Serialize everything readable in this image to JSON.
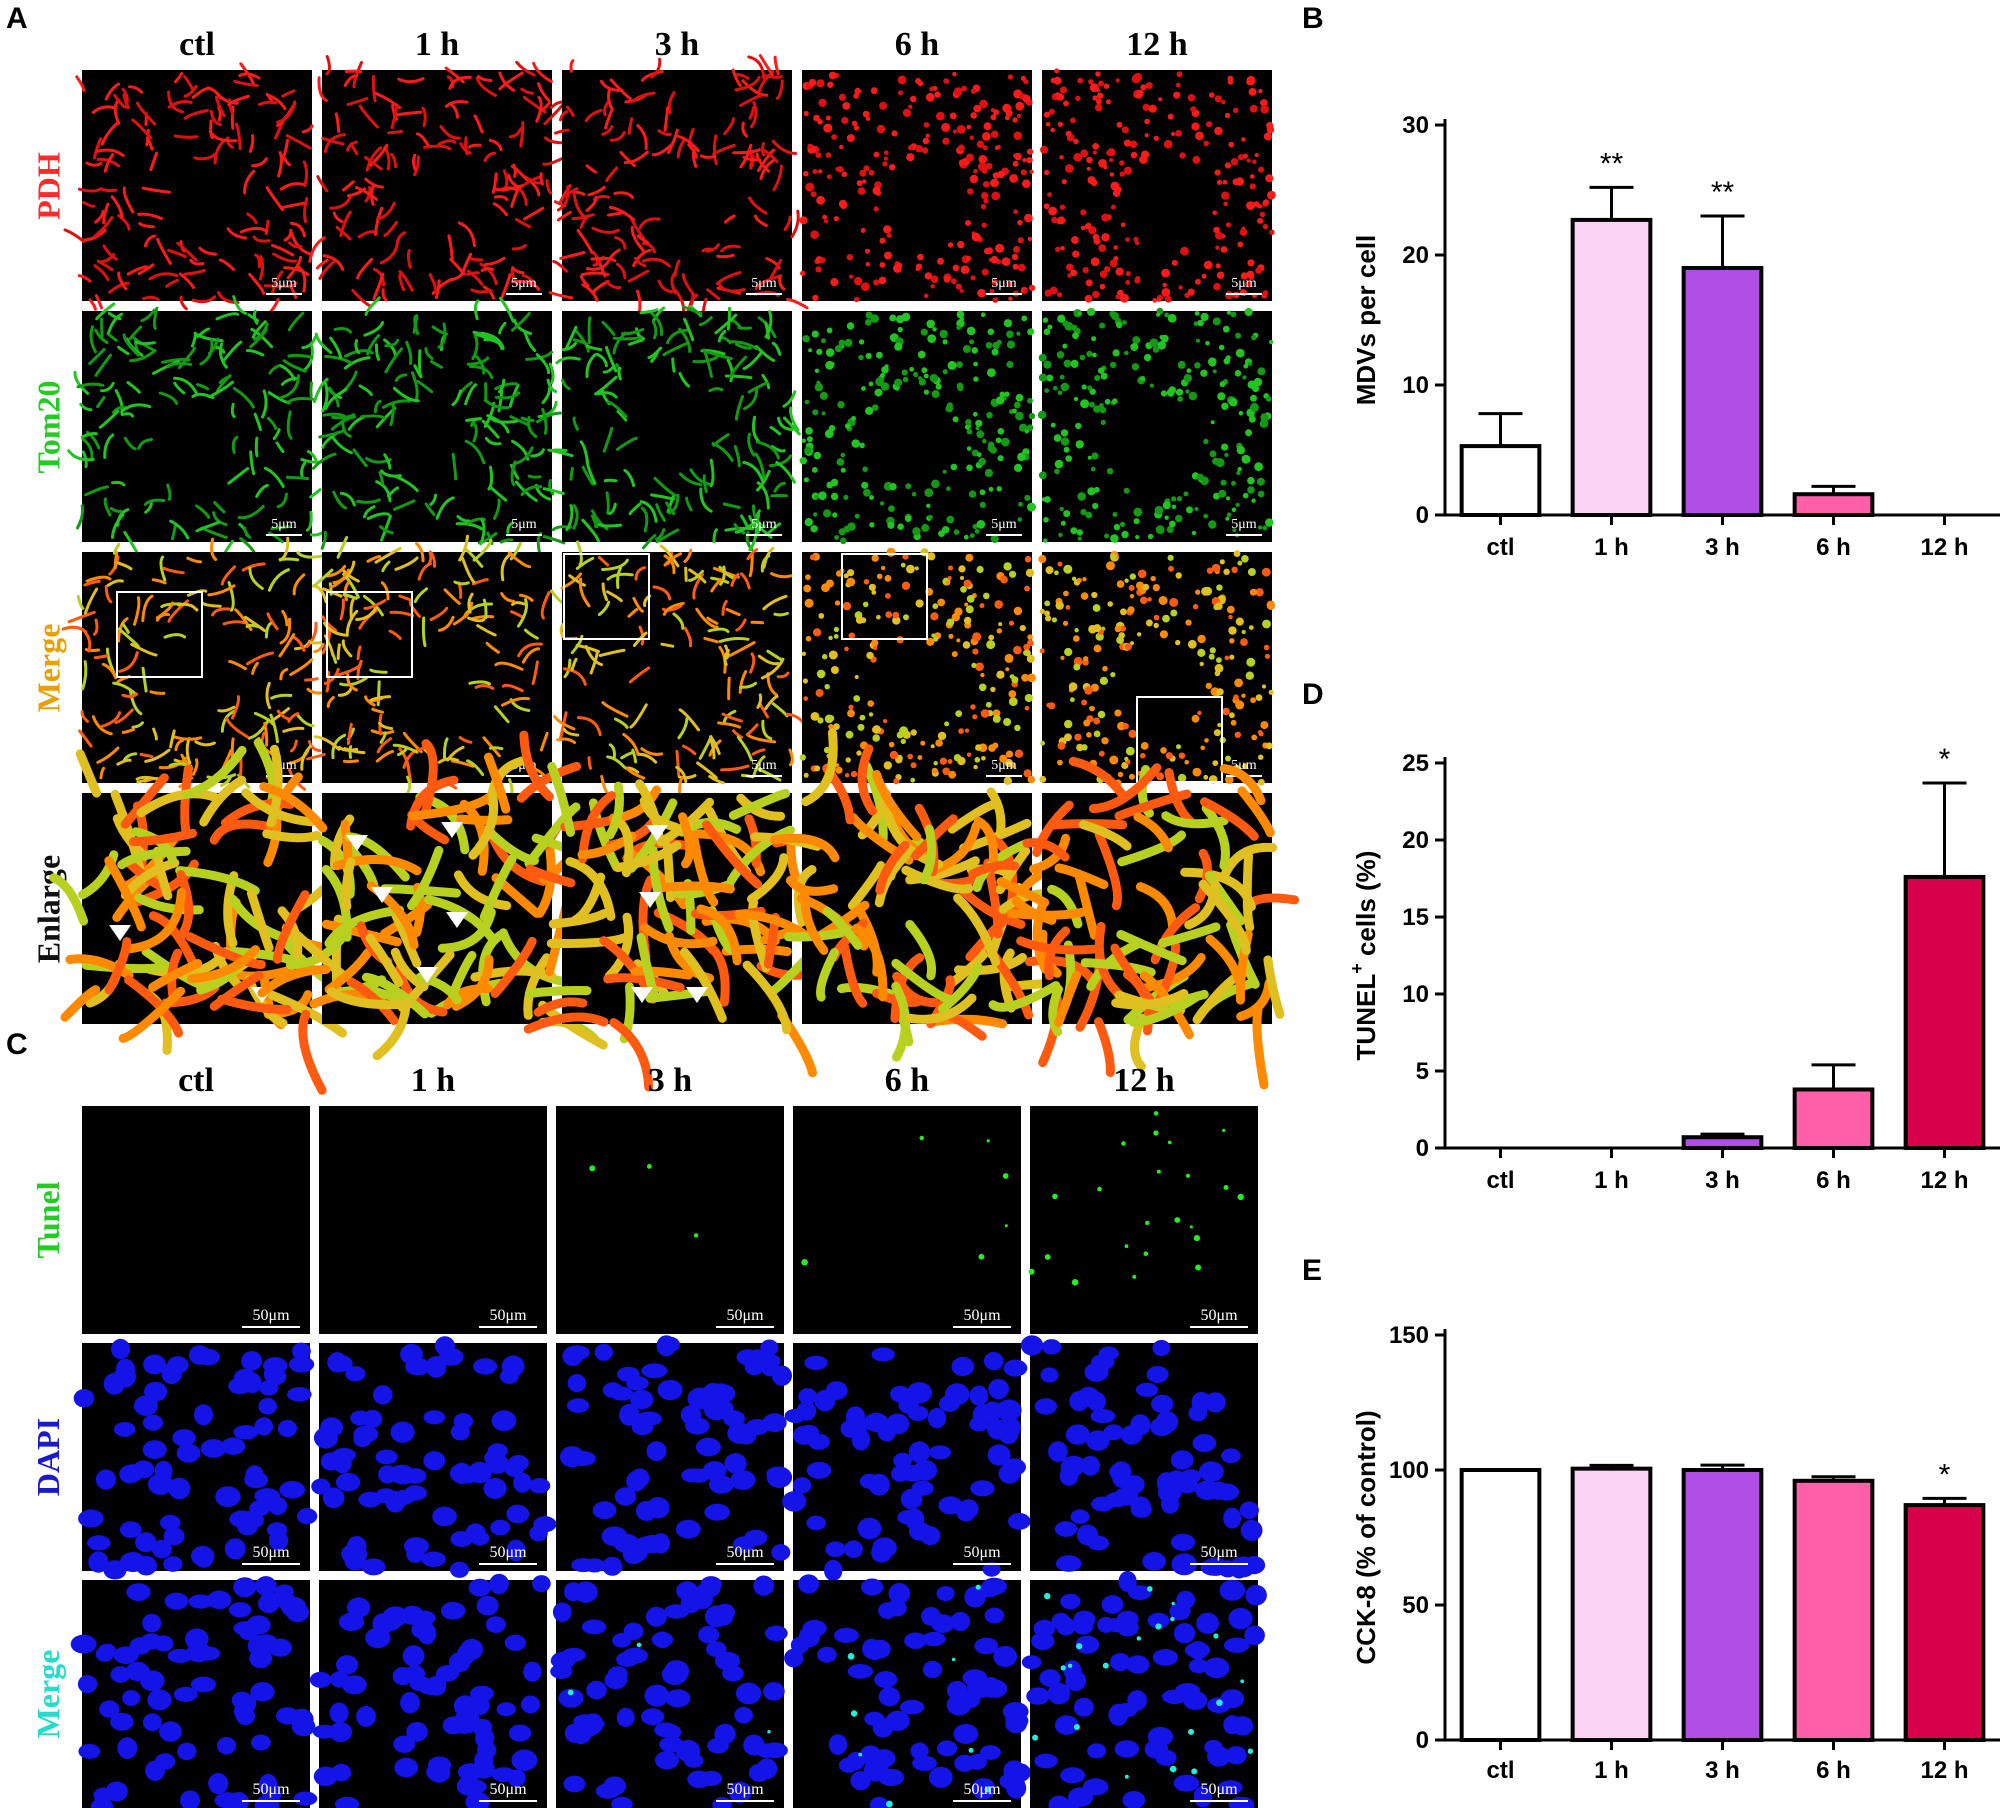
{
  "panel_letters": {
    "A": "A",
    "B": "B",
    "C": "C",
    "D": "D",
    "E": "E"
  },
  "panel_a": {
    "columns": [
      "ctl",
      "1 h",
      "3 h",
      "6 h",
      "12 h"
    ],
    "rows": [
      {
        "label": "PDH",
        "color": "#ff2a2a",
        "type": "pdh"
      },
      {
        "label": "Tom20",
        "color": "#22cc22",
        "type": "tom20"
      },
      {
        "label": "Merge",
        "color": "#e8a000",
        "type": "merge"
      },
      {
        "label": "Enlarge",
        "color": "#111111",
        "type": "enlarge"
      }
    ],
    "scale_label": "5μm"
  },
  "panel_c": {
    "columns": [
      "ctl",
      "1 h",
      "3 h",
      "6 h",
      "12 h"
    ],
    "rows": [
      {
        "label": "Tunel",
        "color": "#22cc22",
        "type": "tunel"
      },
      {
        "label": "DAPI",
        "color": "#1a1acc",
        "type": "dapi"
      },
      {
        "label": "Merge",
        "color": "#22ddcc",
        "type": "dapimerge"
      }
    ],
    "scale_label": "50μm"
  },
  "chart_data": [
    {
      "panel": "B",
      "type": "bar",
      "categories": [
        "ctl",
        "1 h",
        "3 h",
        "6 h",
        "12 h"
      ],
      "values": [
        5.3,
        22.7,
        19.0,
        1.6,
        0
      ],
      "errors": [
        2.5,
        2.5,
        4.0,
        0.6,
        0
      ],
      "significance": [
        "",
        "**",
        "**",
        "",
        ""
      ],
      "xlabel": "",
      "ylabel": "MDVs per cell",
      "ylim": [
        0,
        30
      ],
      "yticks": [
        0,
        10,
        20,
        30
      ],
      "colors": [
        "#ffffff",
        "#fbd3f5",
        "#b04ee6",
        "#ff5fa8",
        "#d8004a"
      ]
    },
    {
      "panel": "D",
      "type": "bar",
      "categories": [
        "ctl",
        "1 h",
        "3 h",
        "6 h",
        "12 h"
      ],
      "values": [
        0,
        0,
        0.7,
        3.8,
        17.6
      ],
      "errors": [
        0,
        0,
        0.2,
        1.6,
        6.1
      ],
      "significance": [
        "",
        "",
        "",
        "",
        "*"
      ],
      "xlabel": "",
      "ylabel": "TUNEL",
      "ylabel_sup": "+",
      "ylabel_rest": " cells (%)",
      "ylim": [
        0,
        25
      ],
      "yticks": [
        0,
        5,
        10,
        15,
        20,
        25
      ],
      "colors": [
        "#ffffff",
        "#fbd3f5",
        "#b04ee6",
        "#ff5fa8",
        "#d8004a"
      ]
    },
    {
      "panel": "E",
      "type": "bar",
      "categories": [
        "ctl",
        "1 h",
        "3 h",
        "6 h",
        "12 h"
      ],
      "values": [
        100,
        100.5,
        100,
        96,
        87
      ],
      "errors": [
        0,
        1.2,
        1.8,
        1.5,
        2.5
      ],
      "significance": [
        "",
        "",
        "",
        "",
        "*"
      ],
      "xlabel": "",
      "ylabel": "CCK-8 (% of control)",
      "ylim": [
        0,
        150
      ],
      "yticks": [
        0,
        50,
        100,
        150
      ],
      "colors": [
        "#ffffff",
        "#fbd3f5",
        "#b04ee6",
        "#ff5fa8",
        "#d8004a"
      ]
    }
  ]
}
